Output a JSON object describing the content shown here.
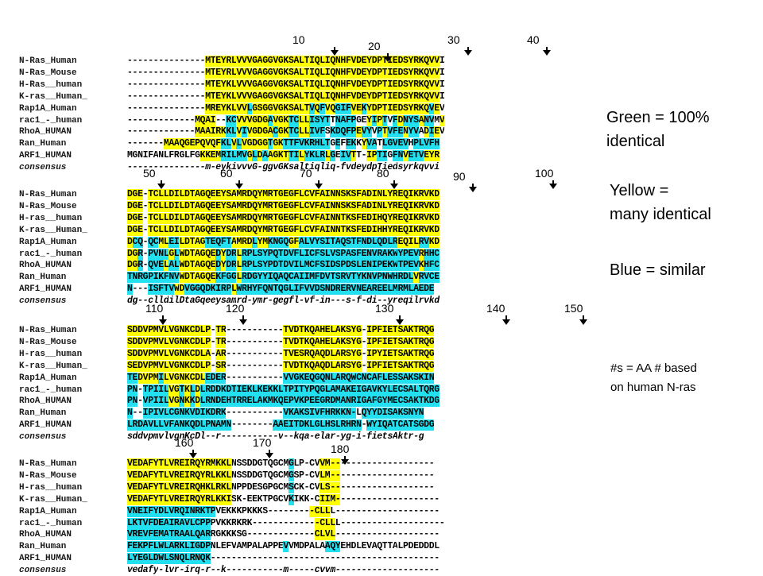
{
  "legend": {
    "green_line1": "Green = 100%",
    "green_line2": "identical",
    "yellow_line1": "Yellow =",
    "yellow_line2": "many identical",
    "blue": "Blue = similar",
    "note_line1": "#s = AA # based",
    "note_line2": "on human N-ras"
  },
  "colors": {
    "identical": "#28c828",
    "many_identical": "#ffff00",
    "similar": "#22e0f0"
  },
  "blocks": [
    {
      "positions": [
        "10",
        "20",
        "30",
        "40"
      ],
      "rows": [
        {
          "name": "N-Ras_Human",
          "seq": "---------------MTEYRLVVVGAGGVGKSALTIQLIQNHFVDEYDPTIEDSYRKQVVI",
          "hl": "...............YYYYYYYYYYYYYYYYYYYYYYYYYYYYYYYYYYYYYYYYYYYYY"
        },
        {
          "name": "N-Ras_Mouse",
          "seq": "---------------MTEYRLVVVGAGGVGKSALTIQLIQNHFVDEYDPTIEDSYRKQVVI",
          "hl": "...............YYYYYYYYYYYYYYYYYYYYYYYYYYYYYYYYYYYYYYYYYYYYY"
        },
        {
          "name": "H-Ras__human",
          "seq": "---------------MTEYKLVVVGAGGVGKSALTIQLIQNHFVDEYDPTIEDSYRKQVVI",
          "hl": "...............YYYYYYYYYYYYYYYYYYYYYYYYYYYYYYYYYYYYYYYYYYYYY"
        },
        {
          "name": "K-ras__Human_",
          "seq": "---------------MTEYKLVVVGAGGVGKSALTIQLIQNHFVDEYDPTIEDSYRKQVVI",
          "hl": "...............YYYYYYYYYYYYYYYYYYYYYYYYYYYYYYYYYYYYYYYYYYYYY"
        },
        {
          "name": "Rap1A_Human",
          "seq": "---------------MREYKLVVLGSGGVGKSALTVQFVQGIFVEKYDPTIEDSYRKQVEV",
          "hl": "...............YYYYYYYYBYYYYYYYYYYYBYBYYBBBYYBYYYYYYYYYYYYBY"
        },
        {
          "name": "rac1_-_human",
          "seq": "-------------MQAI--KCVVVGDGAVGKTCLLISYTTNAFPGEYIPTVFDNYSANVMV",
          "hl": ".............YYYY..BBYYYYYYBYYYBBYYBBBB.BBBB..YBYB.BYBBBYBB.Y"
        },
        {
          "name": "RhoA_HUMAN",
          "seq": "-------------MAAIRKKLVIVGDGACGKTCLLIVFSKDQFPEVYVPTVFENYVADIEV",
          "hl": ".............YYYYYYBBYBYYYYYBYYBBYYBBB.BBBBBYBB.BYBBBYBB.YBY"
        },
        {
          "name": "Ran_Human",
          "seq": "-------MAAQGEPQVQFKLVLVGDGGTGKTTFVKRHLTGEFEKKYVATLGVEVHPLVFH",
          "hl": ".......YYYYYYYYYYYBBYBYYYYYBYYBBBBBBBBB.B.BB.YBB.BBBBB.BBBBB."
        },
        {
          "name": "ARF1_HUMAN",
          "seq": "MGNIFANLFRGLFGKKEMRILMVGLDAAGKTTILYKLRLGEIVTT-IPTIGFNVETVEYR",
          "hl": "..............YYYYBBBBBYBYBYYYYBBYBBBBYB.BBY..YYBB.BBYBBBYYY"
        },
        {
          "name": "consensus",
          "seq": "---------------m-eykivvvG-ggvGKsaltiqliq-fvdeydpTiedsyrkqvvi",
          "hl": "",
          "cons": true
        }
      ]
    },
    {
      "positions": [
        "50",
        "60",
        "70",
        "80",
        "90",
        "100"
      ],
      "rows": [
        {
          "name": "N-Ras_Human",
          "seq": "DGE-TCLLDILDTAGQEEYSAMRDQYMRTGEGFLCVFAINNSKSFADINLYREQIKRVKD",
          "hl": "YYY.YYYYYYYYYYYYYYYYYYYYYYYYYYYYYYYYYYYYYYYYYYYYYYYYYYYYYYYYY"
        },
        {
          "name": "N-Ras_Mouse",
          "seq": "DGE-TCLLDILDTAGQEEYSAMRDQYMRTGEGFLCVFAINNSKSFADINLYREQIKRVKD",
          "hl": "YYY.YYYYYYYYYYYYYYYYYYYYYYYYYYYYYYYYYYYYYYYYYYYYYYYYYYYYYYYYY"
        },
        {
          "name": "H-ras__human",
          "seq": "DGE-TCLLDILDTAGQEEYSAMRDQYMRTGEGFLCVFAINNTKSFEDIHQYREQIKRVKD",
          "hl": "YYY.YYYYYYYYYYYYYYYYYYYYYYYYYYYYYYYYYYYYYYYYYYYYYYYYYYYYYYYYY"
        },
        {
          "name": "K-ras__Human_",
          "seq": "DGE-TCLLDILDTAGQEEYSAMRDQYMRTGEGFLCVFAINNTKSFEDIHHYREQIKRVKD",
          "hl": "YYY.YYYYYYYYYYYYYYYYYYYYYYYYYYYYYYYYYYYYYYYYYYYYYYYYYYYYYYYYY"
        },
        {
          "name": "Rap1A_Human",
          "seq": "DCQ-QCMLEILDTAGTEQFTAMRDLYMKNGQGFALVYSITAQSTFNDLQDLREQILRVKD",
          "hl": "YBB.BBYYBBYYYYYBBBBBYYYYBYYBBBBYYBBBBBBBBBBBBBBBBBBBYYYYBBYYY"
        },
        {
          "name": "rac1_-_human",
          "seq": "DGR-PVNLGLWDTAGQEDYDRLRPLSYPQTDVFLICFSLVSPASFENVRAKWYPEVRHHC",
          "hl": "YYB.BBBBYBYYYYYYYBYBBYBBBBBBBBBBBBBBBBBBBBBBBBBBBBBBBBBBYBBBB"
        },
        {
          "name": "RhoA_HUMAN",
          "seq": "DGR-QVELALWDTAGQEDYDRLRPLSYPDTDVILMCFSIDSPDSLENIPEKWTPEVKHFC",
          "hl": "YYB.BBBYBBYYYYYYYBYBBYBBBBBBBBBBBBBBBBBBBBBBBBBBBBBBBBBBYBBBB"
        },
        {
          "name": "Ran_Human",
          "seq": "TNRGPIKFNVWDTAGQEKFGGLRDGYYIQAQCAIIMFDVTSRVTYKNVPNWHRDLVRVCE",
          "hl": "BBBBBBBBBBYYYYYYYBBBBYBBBBBBBBBBBBBBBBBBBBBBBBBBBBBBBBBYBBBB"
        },
        {
          "name": "ARF1_HUMAN",
          "seq": "N---ISFTVWDVGGQDKIRPLWRHYFQNTQGLIFVVDSNDRERVNEAREELMRMLAEDE",
          "hl": "B...BBBBBYYBBBBBBBBBYBBBBBBBBBBBBBBBBBBBBBBBBBBBBBBBBBBBBBB"
        },
        {
          "name": "consensus",
          "seq": "dg--clldilDtaGqeeysamrd-ymr-gegfl-vf-in---s-f-di--yreqilrvkd",
          "hl": "",
          "cons": true
        }
      ]
    },
    {
      "positions": [
        "110",
        "120",
        "130",
        "140",
        "150"
      ],
      "rows": [
        {
          "name": "N-Ras_Human",
          "seq": "SDDVPMVLVGNKCDLP-TR-----------TVDTKQAHELAKSYG-IPFIETSAKTRQG",
          "hl": "YYYYYYYYYYYYYYYY.YY...........YYYYYYYYYYYYYYY.YYYYYYYYYYYYY"
        },
        {
          "name": "N-Ras_Mouse",
          "seq": "SDDVPMVLVGNKCDLP-TR-----------TVDTKQAHELAKSYG-IPFIETSAKTRQG",
          "hl": "YYYYYYYYYYYYYYYY.YY...........YYYYYYYYYYYYYYY.YYYYYYYYYYYYY"
        },
        {
          "name": "H-ras__human",
          "seq": "SDDVPMVLVGNKCDLA-AR-----------TVESRQAQDLARSYG-IPYIETSAKTRQG",
          "hl": "YYYYYYYYYYYYYYYY.YY...........YYYYYYYYYYYYYYY.YYYYYYYYYYYYY"
        },
        {
          "name": "K-ras__Human_",
          "seq": "SEDVPMVLVGNKCDLP-SR-----------TVDTKQAQDLARSYG-IPFIETSAKTRQG",
          "hl": "YYYYYYYYYYYYYYYY.YY...........YYYYYYYYYYYYYYY.YYYYYYYYYYYYY"
        },
        {
          "name": "Rap1A_Human",
          "seq": "TEDVPMILVGNKCDLEDER-----------VVGKEQGQNLARQWCNCAFLESSAKSKIN",
          "hl": "BBYYYYBYYYYYYYYBBBB...........BBBBBBBBBBBBBBBBBBBBBBBBBBBBB"
        },
        {
          "name": "rac1_-_human",
          "seq": "PN-TPIILVGTKLDLRDDKDTIEKLKEKKLTPITYPQGLAMAKEIGAVKYLECSALTQRG",
          "hl": "BB.BBBBBYYBYBYBBBBBBBBBBBBBBBBBBBBBBBBBBBBBBBBBBBBBBBBBBBBBB"
        },
        {
          "name": "RhoA_HUMAN",
          "seq": "PN-VPIILVGNKKDLRNDEHTRRELAKMKQEPVKPEEGRDMANRIGAFGYMECSAKTKDG",
          "hl": "BB.BBBBBYYBYBYBBBBBBBBBBBBBBBBBBBBBBBBBBBBBBBBBBBBBBBBBBBBBB"
        },
        {
          "name": "Ran_Human",
          "seq": "N--IPIVLCGNKVDIKDRK-----------VKAKSIVFHRKKN-LQYYDISAKSNYN",
          "hl": "B..BBBBBBBBBBBBBBBB...........BBBBBBBBBBBBBB.BBBBBBBBBBBBB"
        },
        {
          "name": "ARF1_HUMAN",
          "seq": "LRDAVLLVFANKQDLPNAMN--------AAEITDKLGLHSLRHRN-WYIQATCATSGDG",
          "hl": "BBBBBBBBBBBBBBBBBBBB........BBBBBBBBBBBBBBBBB.BBBBBBBBBBBBB"
        },
        {
          "name": "consensus",
          "seq": "sddvpmvlvgnKcDl--r-----------v--kqa-elar-yg-i-fietsAktr-g",
          "hl": "",
          "cons": true
        }
      ]
    },
    {
      "positions": [
        "160",
        "170",
        "180"
      ],
      "rows": [
        {
          "name": "N-Ras_Human",
          "seq": "VEDAFYTLVREIRQYRMKKLNSSDDGTQGCMGLP-CVVM--------------------",
          "hl": "YYYYYYYYYYYYYYYYYYYY...........B.....YYYY...................."
        },
        {
          "name": "N-Ras_Mouse",
          "seq": "VEDAFYTLVREIRQYRLKKLNSSDDGTQGCMGSP-CVLM--------------------",
          "hl": "YYYYYYYYYYYYYYYYYYYY...........B.....YYYY...................."
        },
        {
          "name": "H-ras__human",
          "seq": "VEDAFYTLVREIRQHKLRKLNPPDESGPGCMSCK-CVLS--------------------",
          "hl": "YYYYYYYYYYYYYYYYYYYY...........B.....YYYY...................."
        },
        {
          "name": "K-ras__Human_",
          "seq": "VEDAFYTLVREIRQYRLKKISK-EEKTPGCVKIKK-CIIM--------------------",
          "hl": "YYYYYYYYYYYYYYYYYYYY...........B.....YYYY...................."
        },
        {
          "name": "Rap1A_Human",
          "seq": "VNEIFYDLVRQINRKTPVEKKKPKKKS---------CLLL--------------------",
          "hl": "BBBBBBBBBBBBBBBBB..................YYYY...................."
        },
        {
          "name": "rac1_-_human",
          "seq": "LKTVFDEAIRAVLCPPPVKKRKRK-------------CLLL--------------------",
          "hl": "BBBBBBBBBBBBBBBB....................YYYY...................."
        },
        {
          "name": "RhoA_HUMAN",
          "seq": "VREVFEMATRAALQARRGKKKSG-------------CLVL--------------------",
          "hl": "BBBBBBBBBBBBBBBB....................YYYY...................."
        },
        {
          "name": "Ran_Human",
          "seq": "FEKPFLWLARKLIGDPNLEFVAMPALAPPEVVMDPALAAQYEHDLEVAQTTALPDEDDDL",
          "hl": "BBBBBBBBBBBBBBBB..............B.......BBB....................."
        },
        {
          "name": "ARF1_HUMAN",
          "seq": "LYEGLDWLSNQLRNQK--------------------------------------------",
          "hl": "BBBBBBBBBBBBBBBB............................................"
        },
        {
          "name": "consensus",
          "seq": "vedafy-lvr-irq-r--k-----------m-----cvvm--------------------",
          "hl": "",
          "cons": true
        }
      ]
    }
  ]
}
